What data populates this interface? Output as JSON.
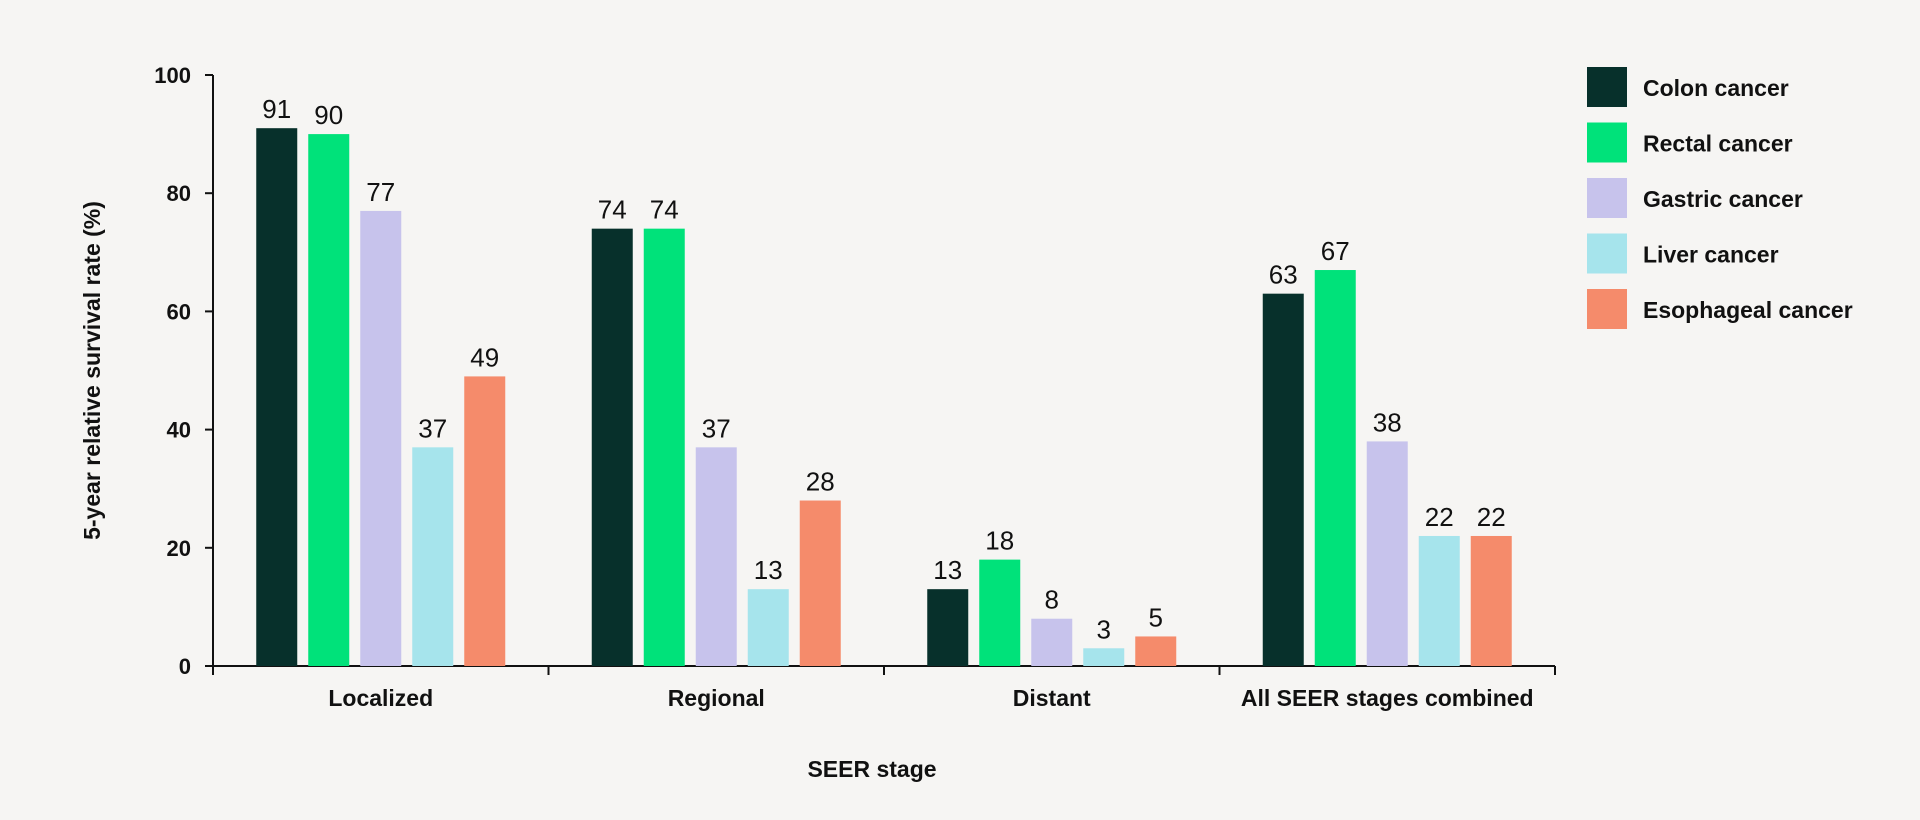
{
  "chart_data": {
    "type": "bar",
    "xlabel": "SEER stage",
    "ylabel": "5-year relative survival rate (%)",
    "ylim": [
      0,
      100
    ],
    "yticks": [
      0,
      20,
      40,
      60,
      80,
      100
    ],
    "categories": [
      "Localized",
      "Regional",
      "Distant",
      "All SEER stages combined"
    ],
    "series": [
      {
        "name": "Colon cancer",
        "color": "#07302b",
        "values": [
          91,
          74,
          13,
          63
        ]
      },
      {
        "name": "Rectal cancer",
        "color": "#00e27a",
        "values": [
          90,
          74,
          18,
          67
        ]
      },
      {
        "name": "Gastric cancer",
        "color": "#c7c3ec",
        "values": [
          77,
          37,
          8,
          38
        ]
      },
      {
        "name": "Liver cancer",
        "color": "#a6e4ec",
        "values": [
          37,
          13,
          3,
          22
        ]
      },
      {
        "name": "Esophageal cancer",
        "color": "#f58b6b",
        "values": [
          49,
          28,
          5,
          22
        ]
      }
    ],
    "legend_position": "top-right",
    "grid": false
  }
}
